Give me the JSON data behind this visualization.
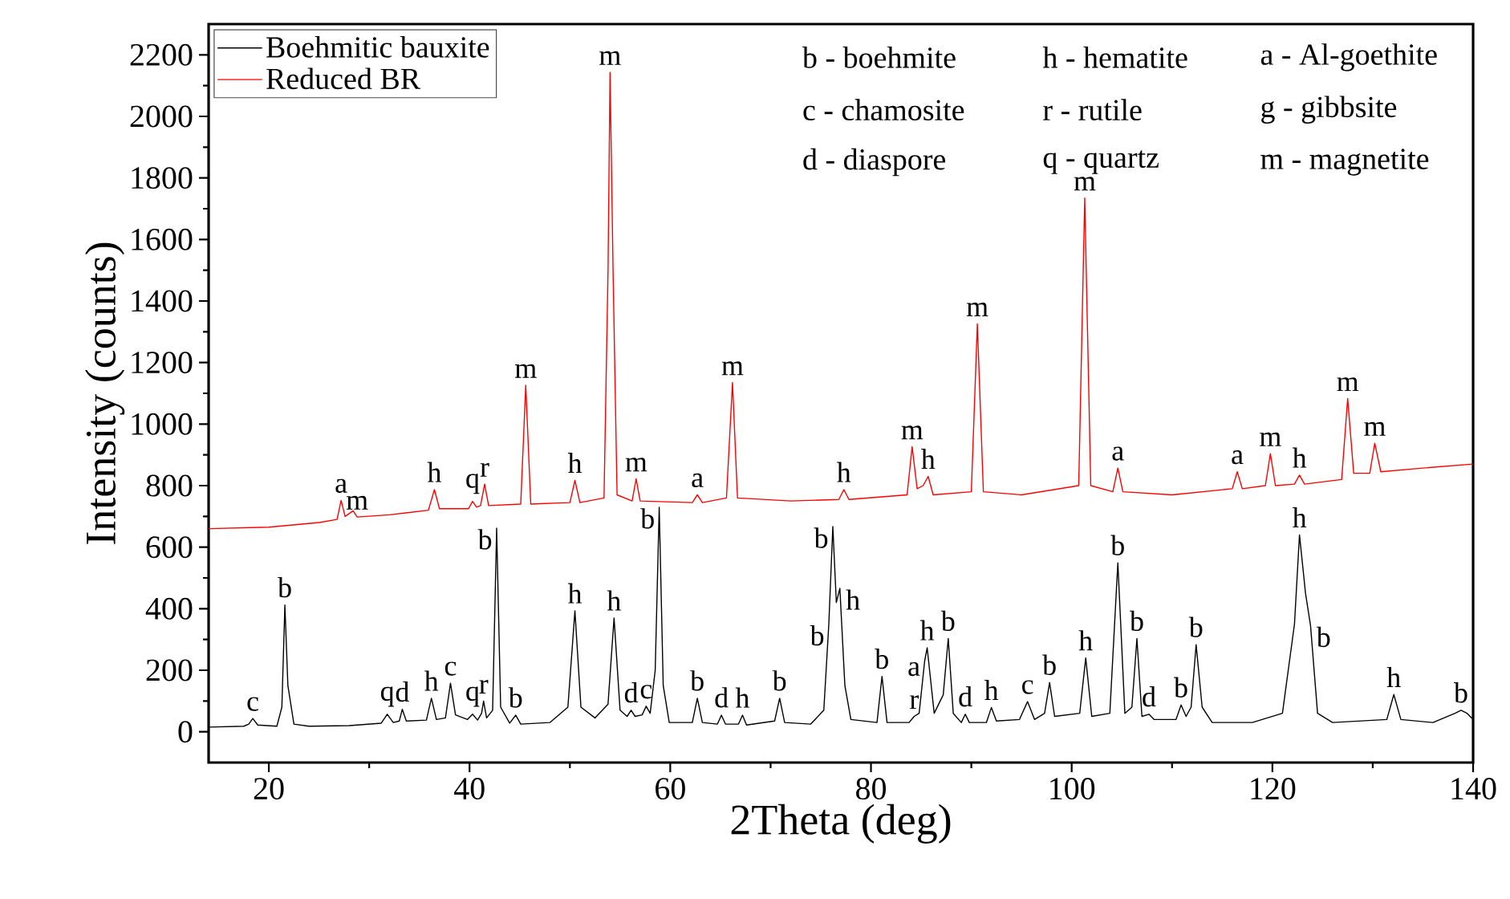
{
  "chart_data": {
    "type": "line",
    "xlabel": "2Theta (deg)",
    "ylabel": "Intensity (counts)",
    "xlim": [
      14,
      140
    ],
    "ylim": [
      -100,
      2300
    ],
    "xticks": [
      20,
      40,
      60,
      80,
      100,
      120,
      140
    ],
    "yticks": [
      0,
      200,
      400,
      600,
      800,
      1000,
      1200,
      1400,
      1600,
      1800,
      2000,
      2200
    ],
    "legend": "top left",
    "series": [
      {
        "name": "Boehmitic bauxite",
        "color": "#000000",
        "x": [
          14,
          17.5,
          18.0,
          18.4,
          18.9,
          20.8,
          21.3,
          21.6,
          21.9,
          22.5,
          24,
          28,
          31.2,
          31.8,
          32.4,
          33.0,
          33.3,
          33.7,
          35.7,
          36.2,
          36.7,
          37.6,
          38.1,
          38.6,
          39.8,
          40.3,
          40.8,
          41.2,
          41.4,
          41.7,
          42.3,
          42.7,
          43.1,
          44.0,
          44.6,
          45.1,
          48,
          49.8,
          50.5,
          51.1,
          52.5,
          53.8,
          54.4,
          55.0,
          55.7,
          56.1,
          56.5,
          57.2,
          57.6,
          58.0,
          58.5,
          58.9,
          59.3,
          59.9,
          62.2,
          62.7,
          63.2,
          64.7,
          65.1,
          65.5,
          66.8,
          67.2,
          67.6,
          70.4,
          70.9,
          71.4,
          74,
          75.3,
          75.8,
          76.2,
          76.55,
          76.9,
          77.4,
          78,
          80.6,
          81.1,
          81.6,
          83.8,
          84.3,
          84.8,
          85.35,
          85.6,
          86.3,
          87.2,
          87.7,
          88.2,
          89.0,
          89.4,
          89.8,
          91.5,
          92.0,
          92.5,
          94.8,
          95.6,
          96.3,
          97.3,
          97.8,
          98.3,
          100.8,
          101.4,
          102.0,
          103.8,
          104.6,
          105.3,
          106.0,
          106.5,
          107.0,
          107.7,
          108.2,
          110.4,
          110.9,
          111.4,
          111.9,
          112.4,
          113.0,
          114,
          118,
          121,
          122.2,
          122.7,
          123.3,
          123.8,
          124.5,
          126,
          131.4,
          132.1,
          132.8,
          136,
          138.2,
          138.8,
          139.4,
          140
        ],
        "values": [
          15,
          18,
          25,
          43,
          22,
          18,
          80,
          412,
          150,
          25,
          18,
          20,
          28,
          57,
          30,
          35,
          73,
          35,
          38,
          109,
          40,
          45,
          158,
          55,
          40,
          57,
          38,
          60,
          100,
          45,
          70,
          662,
          80,
          28,
          54,
          25,
          30,
          80,
          393,
          80,
          45,
          90,
          370,
          70,
          50,
          70,
          50,
          55,
          83,
          60,
          200,
          730,
          150,
          30,
          30,
          109,
          30,
          25,
          54,
          25,
          25,
          54,
          22,
          35,
          109,
          30,
          25,
          70,
          350,
          667,
          420,
          466,
          150,
          40,
          30,
          180,
          30,
          30,
          50,
          60,
          230,
          273,
          60,
          120,
          303,
          60,
          30,
          57,
          30,
          30,
          79,
          35,
          40,
          98,
          40,
          60,
          160,
          50,
          60,
          240,
          50,
          60,
          549,
          60,
          80,
          303,
          50,
          57,
          40,
          40,
          87,
          50,
          80,
          283,
          80,
          30,
          30,
          60,
          350,
          640,
          450,
          345,
          60,
          30,
          40,
          121,
          40,
          30,
          60,
          70,
          60,
          40
        ]
      },
      {
        "name": "Reduced BR",
        "color": "#ff0000",
        "x": [
          14,
          20,
          25,
          26.8,
          27.2,
          27.6,
          28.4,
          28.8,
          32,
          35.9,
          36.5,
          37.0,
          39.9,
          40.3,
          40.7,
          41.1,
          41.5,
          41.9,
          45.1,
          45.6,
          46.1,
          50.0,
          50.5,
          51.0,
          53.4,
          53.8,
          54.0,
          54.3,
          54.7,
          56.2,
          56.6,
          57.0,
          62.2,
          62.7,
          63.2,
          65.6,
          66.2,
          66.7,
          72,
          76.8,
          77.3,
          77.8,
          83.6,
          84.1,
          84.6,
          85.2,
          85.7,
          86.2,
          90.0,
          90.6,
          91.2,
          95,
          100.7,
          101.3,
          101.9,
          104.1,
          104.6,
          105.1,
          110,
          116.0,
          116.5,
          117.0,
          119.3,
          119.8,
          120.3,
          122.2,
          122.7,
          123.2,
          126.9,
          127.5,
          128.1,
          129.7,
          130.2,
          130.8,
          135,
          140
        ],
        "values": [
          660,
          665,
          680,
          690,
          752,
          700,
          718,
          698,
          705,
          720,
          787,
          725,
          725,
          749,
          730,
          735,
          805,
          735,
          740,
          1126,
          740,
          745,
          817,
          745,
          760,
          1500,
          2143,
          1500,
          770,
          750,
          822,
          750,
          745,
          770,
          745,
          760,
          1135,
          760,
          750,
          755,
          787,
          755,
          770,
          926,
          790,
          800,
          830,
          770,
          780,
          1326,
          780,
          770,
          800,
          1735,
          800,
          780,
          857,
          780,
          770,
          790,
          845,
          790,
          800,
          904,
          800,
          805,
          834,
          805,
          820,
          1083,
          840,
          840,
          938,
          845,
          857,
          870
        ]
      }
    ],
    "annotations": [
      "b - boehmite",
      "h - hematite",
      "a - Al-goethite",
      "c - chamosite",
      "r - rutile",
      "g - gibbsite",
      "d - diaspore",
      "q - quartz",
      "m - magnetite",
      {
        "text": "c",
        "x": 18.4,
        "y": 43
      },
      {
        "text": "b",
        "x": 21.6,
        "y": 412
      },
      {
        "text": "q",
        "x": 31.8,
        "y": 57
      },
      {
        "text": "d",
        "x": 33.3,
        "y": 73
      },
      {
        "text": "h",
        "x": 36.2,
        "y": 109
      },
      {
        "text": "c",
        "x": 38.1,
        "y": 158
      },
      {
        "text": "q",
        "x": 40.3,
        "y": 57
      },
      {
        "text": "r",
        "x": 41.4,
        "y": 100
      },
      {
        "text": "b",
        "x": 42.7,
        "y": 662
      },
      {
        "text": "b",
        "x": 44.6,
        "y": 54
      },
      {
        "text": "h",
        "x": 50.5,
        "y": 393
      },
      {
        "text": "h",
        "x": 54.4,
        "y": 370
      },
      {
        "text": "d",
        "x": 56.1,
        "y": 70
      },
      {
        "text": "c",
        "x": 57.6,
        "y": 83
      },
      {
        "text": "b",
        "x": 58.9,
        "y": 730
      },
      {
        "text": "b",
        "x": 62.7,
        "y": 109
      },
      {
        "text": "d",
        "x": 65.1,
        "y": 54
      },
      {
        "text": "h",
        "x": 67.2,
        "y": 54
      },
      {
        "text": "b",
        "x": 70.9,
        "y": 109
      },
      {
        "text": "b",
        "x": 75.8,
        "y": 350
      },
      {
        "text": "b",
        "x": 76.2,
        "y": 667
      },
      {
        "text": "h",
        "x": 76.9,
        "y": 466
      },
      {
        "text": "b",
        "x": 81.1,
        "y": 180
      },
      {
        "text": "a",
        "x": 85.35,
        "y": 230
      },
      {
        "text": "r",
        "x": 84.3,
        "y": 50
      },
      {
        "text": "h",
        "x": 85.6,
        "y": 273
      },
      {
        "text": "b",
        "x": 87.7,
        "y": 303
      },
      {
        "text": "d",
        "x": 89.4,
        "y": 57
      },
      {
        "text": "h",
        "x": 92.0,
        "y": 79
      },
      {
        "text": "c",
        "x": 95.6,
        "y": 98
      },
      {
        "text": "b",
        "x": 97.8,
        "y": 160
      },
      {
        "text": "h",
        "x": 101.4,
        "y": 240
      },
      {
        "text": "b",
        "x": 104.6,
        "y": 549
      },
      {
        "text": "b",
        "x": 106.5,
        "y": 303
      },
      {
        "text": "d",
        "x": 107.7,
        "y": 57
      },
      {
        "text": "b",
        "x": 110.9,
        "y": 87
      },
      {
        "text": "b",
        "x": 112.4,
        "y": 283
      },
      {
        "text": "h",
        "x": 122.7,
        "y": 640
      },
      {
        "text": "b",
        "x": 123.8,
        "y": 345
      },
      {
        "text": "h",
        "x": 132.1,
        "y": 121
      },
      {
        "text": "b",
        "x": 138.8,
        "y": 70
      },
      {
        "text": "a",
        "x": 27.2,
        "y": 752
      },
      {
        "text": "m",
        "x": 28.8,
        "y": 698
      },
      {
        "text": "h",
        "x": 36.5,
        "y": 787
      },
      {
        "text": "q",
        "x": 40.3,
        "y": 749
      },
      {
        "text": "r",
        "x": 41.5,
        "y": 805
      },
      {
        "text": "m",
        "x": 45.6,
        "y": 1126
      },
      {
        "text": "h",
        "x": 50.5,
        "y": 817
      },
      {
        "text": "m",
        "x": 54.0,
        "y": 2143
      },
      {
        "text": "m",
        "x": 56.6,
        "y": 822
      },
      {
        "text": "a",
        "x": 62.7,
        "y": 770
      },
      {
        "text": "m",
        "x": 66.2,
        "y": 1135
      },
      {
        "text": "h",
        "x": 77.3,
        "y": 787
      },
      {
        "text": "m",
        "x": 84.1,
        "y": 926
      },
      {
        "text": "h",
        "x": 85.7,
        "y": 830
      },
      {
        "text": "m",
        "x": 90.6,
        "y": 1326
      },
      {
        "text": "m",
        "x": 101.3,
        "y": 1735
      },
      {
        "text": "a",
        "x": 104.6,
        "y": 857
      },
      {
        "text": "a",
        "x": 116.5,
        "y": 845
      },
      {
        "text": "m",
        "x": 119.8,
        "y": 904
      },
      {
        "text": "h",
        "x": 122.7,
        "y": 834
      },
      {
        "text": "m",
        "x": 127.5,
        "y": 1083
      },
      {
        "text": "m",
        "x": 130.2,
        "y": 938
      }
    ]
  }
}
